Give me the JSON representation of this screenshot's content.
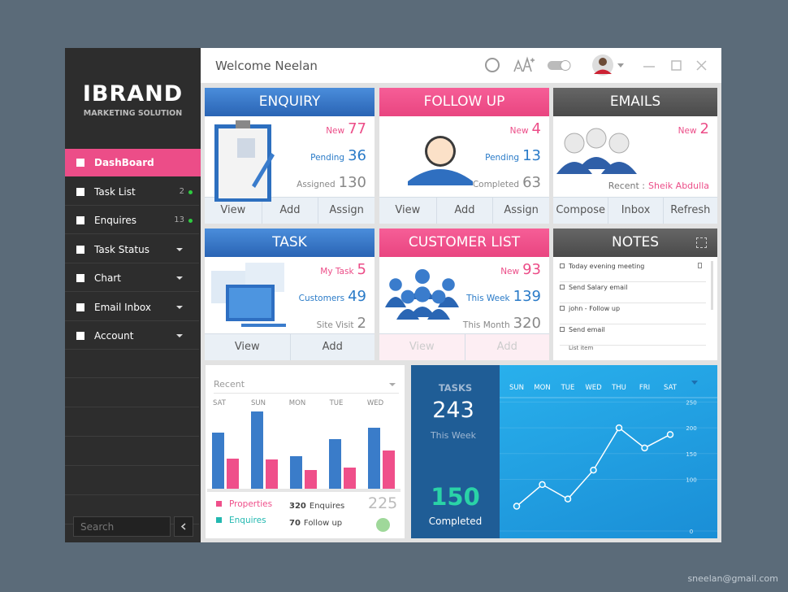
{
  "sidebar": {
    "brand": "IBRAND",
    "tagline": "MARKETING SOLUTION",
    "menu": [
      {
        "label": "DashBoard"
      },
      {
        "label": "Task List",
        "count": 2
      },
      {
        "label": "Enquires",
        "count": 13
      },
      {
        "label": "Task Status"
      },
      {
        "label": "Chart"
      },
      {
        "label": "Email Inbox"
      },
      {
        "label": "Account"
      }
    ],
    "search": "Search"
  },
  "header": {
    "welcome": "Welcome Neelan"
  },
  "cards": [
    {
      "title": "ENQUIRY",
      "stats": [
        {
          "label": "New",
          "value": 77
        },
        {
          "label": "Pending",
          "value": 36
        },
        {
          "label": "Assigned",
          "value": 130
        }
      ],
      "actions": [
        "View",
        "Add",
        "Assign"
      ]
    },
    {
      "title": "FOLLOW UP",
      "stats": [
        {
          "label": "New",
          "value": 4
        },
        {
          "label": "Pending",
          "value": 13
        },
        {
          "label": "Completed",
          "value": 63
        }
      ],
      "actions": [
        "View",
        "Add",
        "Assign"
      ]
    },
    {
      "title": "EMAILS",
      "stats": [
        {
          "label": "New",
          "value": 2
        }
      ],
      "recent": {
        "label": "Recent :",
        "value": "Sheik Abdulla"
      },
      "actions": [
        "Compose",
        "Inbox",
        "Refresh"
      ]
    },
    {
      "title": "TASK",
      "stats": [
        {
          "label": "My Task",
          "value": 5
        },
        {
          "label": "Customers",
          "value": 49
        },
        {
          "label": "Site Visit",
          "value": 2
        }
      ],
      "actions": [
        "View",
        "Add"
      ]
    },
    {
      "title": "CUSTOMER LIST",
      "stats": [
        {
          "label": "New",
          "value": 93
        },
        {
          "label": "This Week",
          "value": 139
        },
        {
          "label": "This Month",
          "value": 320
        }
      ],
      "actions": [
        "View",
        "Add"
      ],
      "actions_disabled": true
    }
  ],
  "notes": {
    "title": "NOTES",
    "items": [
      "Today evening meeting",
      "Send Salary email",
      "john - Follow up",
      "Send email"
    ],
    "add": "List item"
  },
  "chart_data": [
    {
      "type": "bar",
      "title": "Recent",
      "categories": [
        "SAT",
        "SUN",
        "MON",
        "TUE",
        "WED"
      ],
      "series": [
        {
          "name": "Properties",
          "color": "#ef4f8a",
          "legend_color": "#ef4f8a",
          "values": [
            37,
            36,
            23,
            26,
            47
          ]
        },
        {
          "name": "Enquires",
          "color": "#3a7cc9",
          "legend_color": "#22b8b0",
          "values": [
            69,
            95,
            40,
            61,
            75
          ]
        }
      ],
      "ylim": [
        0,
        100
      ]
    },
    {
      "type": "line",
      "categories": [
        "SUN",
        "MON",
        "TUE",
        "WED",
        "THU",
        "FRI",
        "SAT"
      ],
      "series": [
        {
          "name": "Tasks",
          "color": "#ffffff",
          "values": [
            48,
            90,
            62,
            118,
            200,
            161,
            187
          ]
        }
      ],
      "ylim": [
        0,
        260
      ],
      "yticks": [
        0,
        100,
        150,
        200,
        250
      ],
      "grid": true
    }
  ],
  "summary": {
    "enquires": {
      "value": 320,
      "label": "Enquires"
    },
    "followup": {
      "value": 70,
      "label": "Follow up"
    },
    "total": 225
  },
  "tasks_panel": {
    "title": "TASKS",
    "week": {
      "value": 243,
      "label": "This Week"
    },
    "completed": {
      "value": 150,
      "label": "Completed"
    }
  },
  "footer": "sneelan@gmail.com"
}
